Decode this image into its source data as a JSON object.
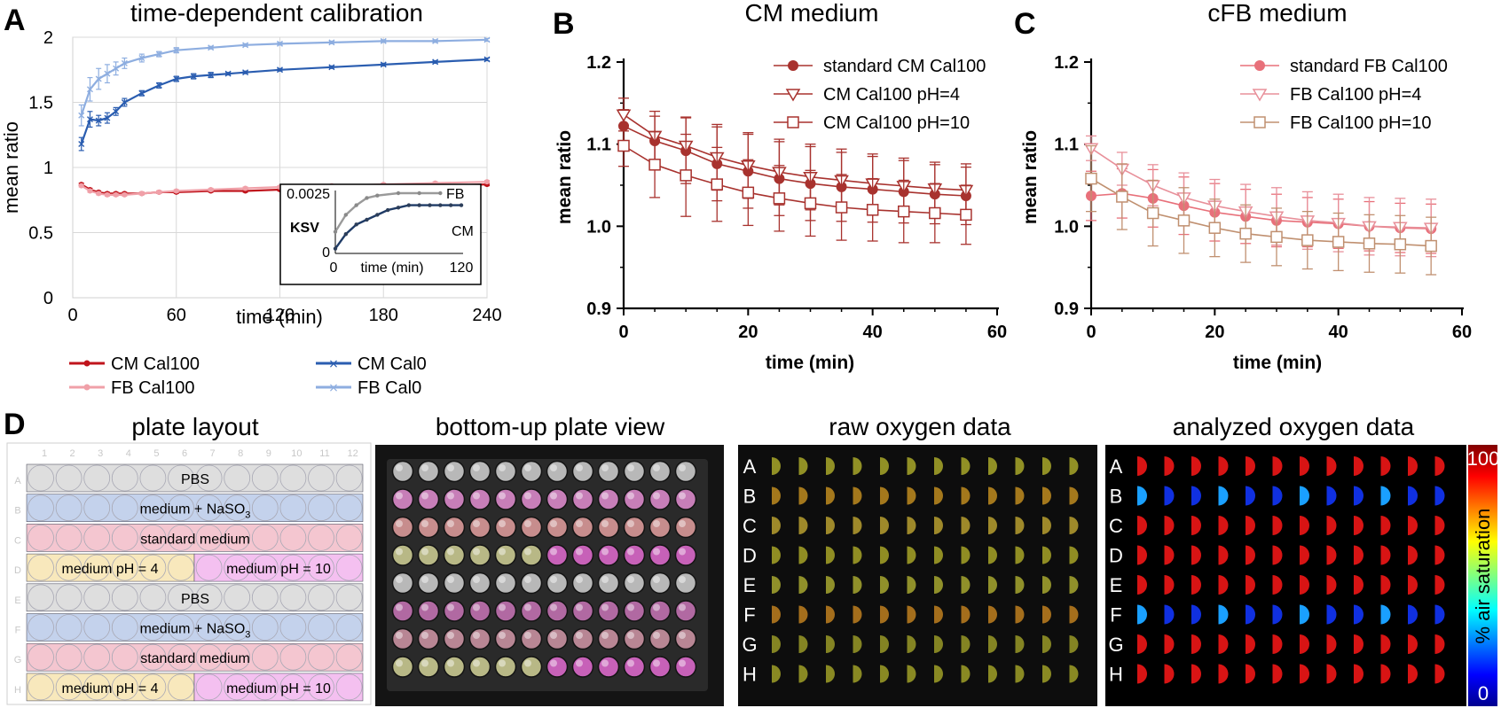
{
  "panels": {
    "A": "A",
    "B": "B",
    "C": "C",
    "D": "D"
  },
  "chart_data": [
    {
      "id": "A",
      "type": "line",
      "title": "time-dependent calibration",
      "xlabel": "time (min)",
      "ylabel": "mean ratio",
      "xlim": [
        0,
        240
      ],
      "ylim": [
        0,
        2
      ],
      "xticks": [
        "0",
        "60",
        "120",
        "180",
        "240"
      ],
      "yticks": [
        "0",
        "0.5",
        "1",
        "1.5",
        "2"
      ],
      "grid": true,
      "series": [
        {
          "name": "CM Cal100",
          "color": "#c0141c",
          "marker": "dot",
          "x": [
            5,
            10,
            15,
            20,
            25,
            30,
            40,
            50,
            60,
            80,
            100,
            120,
            150,
            180,
            210,
            240
          ],
          "y": [
            0.87,
            0.83,
            0.81,
            0.8,
            0.8,
            0.8,
            0.8,
            0.81,
            0.81,
            0.82,
            0.82,
            0.83,
            0.84,
            0.85,
            0.86,
            0.87
          ],
          "err": [
            0.01,
            0.01,
            0.01,
            0.01,
            0.01,
            0.01,
            0.01,
            0.01,
            0.01,
            0.01,
            0.01,
            0.01,
            0.01,
            0.01,
            0.01,
            0.01
          ]
        },
        {
          "name": "FB Cal100",
          "color": "#f0a0a8",
          "marker": "dot",
          "x": [
            5,
            10,
            15,
            20,
            25,
            30,
            40,
            50,
            60,
            80,
            100,
            120,
            150,
            180,
            210,
            240
          ],
          "y": [
            0.86,
            0.82,
            0.8,
            0.79,
            0.79,
            0.79,
            0.8,
            0.81,
            0.82,
            0.83,
            0.84,
            0.85,
            0.86,
            0.87,
            0.88,
            0.89
          ],
          "err": [
            0.01,
            0.01,
            0.01,
            0.01,
            0.01,
            0.01,
            0.01,
            0.01,
            0.01,
            0.01,
            0.01,
            0.01,
            0.01,
            0.01,
            0.01,
            0.01
          ]
        },
        {
          "name": "CM Cal0",
          "color": "#2a5db0",
          "marker": "x",
          "x": [
            5,
            10,
            15,
            20,
            25,
            30,
            40,
            50,
            60,
            70,
            80,
            90,
            100,
            120,
            150,
            180,
            210,
            240
          ],
          "y": [
            1.18,
            1.37,
            1.36,
            1.38,
            1.43,
            1.5,
            1.57,
            1.63,
            1.68,
            1.7,
            1.71,
            1.72,
            1.73,
            1.75,
            1.77,
            1.79,
            1.81,
            1.83
          ],
          "err": [
            0.05,
            0.06,
            0.04,
            0.04,
            0.03,
            0.03,
            0.02,
            0.02,
            0.02,
            0.02,
            0.02,
            0.01,
            0.01,
            0.01,
            0.01,
            0.01,
            0.01,
            0.01
          ]
        },
        {
          "name": "FB Cal0",
          "color": "#8eaee0",
          "marker": "x",
          "x": [
            5,
            10,
            15,
            20,
            25,
            30,
            40,
            50,
            60,
            80,
            100,
            120,
            150,
            180,
            210,
            240
          ],
          "y": [
            1.4,
            1.6,
            1.68,
            1.72,
            1.76,
            1.8,
            1.84,
            1.87,
            1.9,
            1.92,
            1.94,
            1.95,
            1.96,
            1.97,
            1.97,
            1.98
          ],
          "err": [
            0.08,
            0.09,
            0.08,
            0.07,
            0.05,
            0.04,
            0.03,
            0.02,
            0.02,
            0.01,
            0.01,
            0.01,
            0.01,
            0.01,
            0.01,
            0.01
          ]
        }
      ],
      "legend": [
        "CM Cal100",
        "CM Cal0",
        "FB Cal100",
        "FB Cal0"
      ],
      "inset": {
        "ylabel": "KSV",
        "xlabel": "time (min)",
        "ytick_top": "0.0025",
        "ytick_bottom": "0",
        "xtick_left": "0",
        "xtick_right": "120",
        "label_fb": "FB",
        "label_cm": "CM",
        "fb": {
          "x": [
            0,
            10,
            20,
            30,
            40,
            60,
            80,
            100
          ],
          "y": [
            0.0009,
            0.0016,
            0.002,
            0.0023,
            0.0024,
            0.0025,
            0.0025,
            0.0025
          ]
        },
        "cm": {
          "x": [
            0,
            10,
            20,
            30,
            40,
            50,
            60,
            70,
            80,
            90,
            100,
            110,
            120
          ],
          "y": [
            0.0002,
            0.0008,
            0.0012,
            0.0014,
            0.0016,
            0.0018,
            0.0019,
            0.002,
            0.002,
            0.002,
            0.002,
            0.002,
            0.002
          ]
        }
      }
    },
    {
      "id": "B",
      "type": "line",
      "title": "CM medium",
      "xlabel": "time (min)",
      "ylabel": "mean ratio",
      "xlim": [
        0,
        60
      ],
      "ylim": [
        0.9,
        1.2
      ],
      "xticks": [
        "0",
        "20",
        "40",
        "60"
      ],
      "yticks": [
        "0.9",
        "1.0",
        "1.1",
        "1.2"
      ],
      "x": [
        0,
        5,
        10,
        15,
        20,
        25,
        30,
        35,
        40,
        45,
        50,
        55
      ],
      "series": [
        {
          "name": "standard CM Cal100",
          "color": "#a8322e",
          "marker": "circle",
          "y": [
            1.122,
            1.104,
            1.092,
            1.076,
            1.067,
            1.058,
            1.052,
            1.048,
            1.045,
            1.042,
            1.039,
            1.037
          ],
          "err": [
            0.02,
            0.03,
            0.04,
            0.045,
            0.045,
            0.045,
            0.045,
            0.042,
            0.04,
            0.038,
            0.036,
            0.035
          ]
        },
        {
          "name": "CM Cal100 pH=4",
          "color": "#a8322e",
          "marker": "triangle",
          "y": [
            1.136,
            1.11,
            1.098,
            1.084,
            1.074,
            1.066,
            1.06,
            1.056,
            1.052,
            1.049,
            1.046,
            1.044
          ],
          "err": [
            0.02,
            0.03,
            0.035,
            0.04,
            0.04,
            0.04,
            0.04,
            0.038,
            0.036,
            0.034,
            0.032,
            0.032
          ]
        },
        {
          "name": "CM Cal100 pH=10",
          "color": "#a8322e",
          "marker": "square",
          "y": [
            1.098,
            1.075,
            1.062,
            1.051,
            1.041,
            1.034,
            1.028,
            1.023,
            1.02,
            1.018,
            1.016,
            1.014
          ],
          "err": [
            0.025,
            0.04,
            0.05,
            0.045,
            0.04,
            0.04,
            0.04,
            0.04,
            0.038,
            0.038,
            0.036,
            0.036
          ]
        }
      ]
    },
    {
      "id": "C",
      "type": "line",
      "title": "cFB medium",
      "xlabel": "time (min)",
      "ylabel": "mean ratio",
      "xlim": [
        0,
        60
      ],
      "ylim": [
        0.9,
        1.2
      ],
      "xticks": [
        "0",
        "20",
        "40",
        "60"
      ],
      "yticks": [
        "0.9",
        "1.0",
        "1.1",
        "1.2"
      ],
      "x": [
        0,
        5,
        10,
        15,
        20,
        25,
        30,
        35,
        40,
        45,
        50,
        55
      ],
      "series": [
        {
          "name": "standard FB Cal100",
          "color": "#e8707a",
          "marker": "circle",
          "y": [
            1.037,
            1.04,
            1.034,
            1.025,
            1.017,
            1.012,
            1.007,
            1.005,
            1.003,
            1.0,
            0.998,
            0.997
          ],
          "err": [
            0.03,
            0.03,
            0.035,
            0.035,
            0.035,
            0.033,
            0.032,
            0.03,
            0.03,
            0.03,
            0.03,
            0.03
          ]
        },
        {
          "name": "FB Cal100 pH=4",
          "color": "#e8909a",
          "marker": "triangle",
          "y": [
            1.095,
            1.07,
            1.05,
            1.035,
            1.025,
            1.018,
            1.012,
            1.007,
            1.004,
            1.0,
            0.999,
            0.998
          ],
          "err": [
            0.015,
            0.02,
            0.025,
            0.03,
            0.032,
            0.033,
            0.035,
            0.035,
            0.035,
            0.035,
            0.035,
            0.035
          ]
        },
        {
          "name": "FB Cal100 pH=10",
          "color": "#c09070",
          "marker": "square",
          "y": [
            1.058,
            1.036,
            1.016,
            1.007,
            0.998,
            0.991,
            0.987,
            0.983,
            0.981,
            0.979,
            0.978,
            0.976
          ],
          "err": [
            0.04,
            0.04,
            0.04,
            0.04,
            0.035,
            0.035,
            0.035,
            0.035,
            0.035,
            0.035,
            0.035,
            0.035
          ]
        }
      ]
    }
  ],
  "panel_d": {
    "titles": {
      "layout": "plate layout",
      "bottom_up": "bottom-up plate view",
      "raw": "raw oxygen data",
      "analyzed": "analyzed oxygen data"
    },
    "columns": [
      "1",
      "2",
      "3",
      "4",
      "5",
      "6",
      "7",
      "8",
      "9",
      "10",
      "11",
      "12"
    ],
    "rows": [
      "A",
      "B",
      "C",
      "D",
      "E",
      "F",
      "G",
      "H"
    ],
    "row_labels": [
      "PBS",
      "medium + NaSO",
      "standard medium",
      "medium pH = 4",
      "PBS",
      "medium + NaSO",
      "standard medium",
      "medium pH = 4"
    ],
    "row_labels_right": [
      "",
      "",
      "",
      "medium pH = 10",
      "",
      "",
      "",
      "medium pH = 10"
    ],
    "subscript": "3",
    "colorbar": {
      "label": "% air saturation",
      "top": "100",
      "bottom": "0"
    },
    "colors": {
      "pbs": "#dedede",
      "naso": "#c4d2ec",
      "standard": "#f4c6d0",
      "ph4": "#f8e8bc",
      "ph10": "#f4c0f0"
    }
  }
}
